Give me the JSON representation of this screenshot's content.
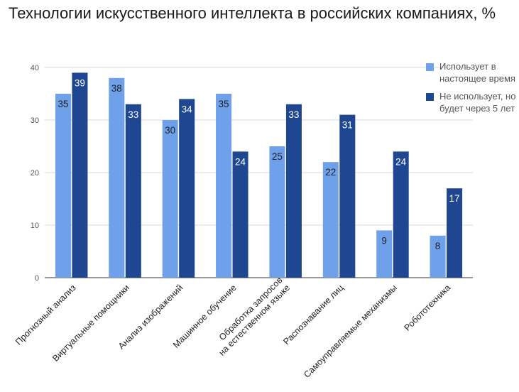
{
  "colors": {
    "series1": "#6fa0ea",
    "series2": "#1f4690",
    "grid": "#d9d9d9",
    "axis": "#333333"
  },
  "chart_data": {
    "type": "bar",
    "title": "Технологии искусственного интеллекта в российских компаниях, %",
    "xlabel": "",
    "ylabel": "",
    "ylim": [
      0,
      40
    ],
    "yticks": [
      0,
      10,
      20,
      30,
      40
    ],
    "grid": true,
    "legend_position": "right",
    "categories": [
      [
        "Прогнозный анализ"
      ],
      [
        "Виртуальные помощники"
      ],
      [
        "Анализ изображений"
      ],
      [
        "Машинное обучение"
      ],
      [
        "Обработка запросов",
        "на естественном языке"
      ],
      [
        "Распознавание лиц"
      ],
      [
        "Самоуправляемые механизмы"
      ],
      [
        "Робототехника"
      ]
    ],
    "series": [
      {
        "name": [
          "Использует в",
          "настоящее время"
        ],
        "values": [
          35,
          38,
          30,
          35,
          25,
          22,
          9,
          8
        ]
      },
      {
        "name": [
          "Не использует, но",
          "будет через 5 лет"
        ],
        "values": [
          39,
          33,
          34,
          24,
          33,
          31,
          24,
          17
        ]
      }
    ]
  }
}
